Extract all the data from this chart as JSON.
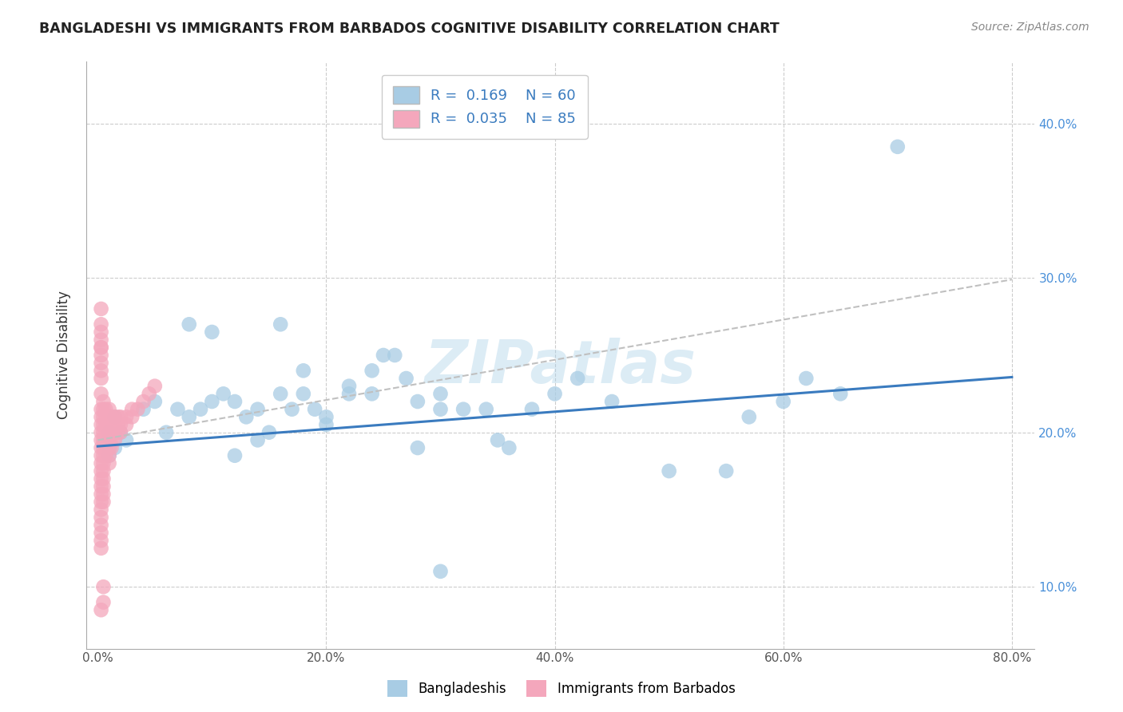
{
  "title": "BANGLADESHI VS IMMIGRANTS FROM BARBADOS COGNITIVE DISABILITY CORRELATION CHART",
  "source": "Source: ZipAtlas.com",
  "ylabel_label": "Cognitive Disability",
  "xlim": [
    -0.01,
    0.82
  ],
  "ylim": [
    0.06,
    0.44
  ],
  "xticks": [
    0.0,
    0.2,
    0.4,
    0.6,
    0.8
  ],
  "xtick_labels": [
    "0.0%",
    "20.0%",
    "40.0%",
    "60.0%",
    "80.0%"
  ],
  "yticks": [
    0.1,
    0.2,
    0.3,
    0.4
  ],
  "ytick_labels": [
    "10.0%",
    "20.0%",
    "30.0%",
    "40.0%"
  ],
  "background_color": "#ffffff",
  "grid_color": "#cccccc",
  "watermark": "ZIPatlas",
  "blue_color": "#a8cce4",
  "pink_color": "#f4a7bc",
  "blue_line_color": "#3a7bbf",
  "dashed_line_color": "#c0c0c0",
  "bangladeshi_x": [
    0.01,
    0.01,
    0.015,
    0.02,
    0.025,
    0.01,
    0.01,
    0.015,
    0.04,
    0.05,
    0.06,
    0.07,
    0.08,
    0.09,
    0.1,
    0.11,
    0.12,
    0.13,
    0.14,
    0.15,
    0.16,
    0.17,
    0.18,
    0.19,
    0.2,
    0.22,
    0.24,
    0.25,
    0.27,
    0.28,
    0.3,
    0.3,
    0.32,
    0.34,
    0.35,
    0.36,
    0.38,
    0.4,
    0.42,
    0.45,
    0.5,
    0.55,
    0.57,
    0.6,
    0.62,
    0.65,
    0.7,
    0.08,
    0.1,
    0.12,
    0.14,
    0.16,
    0.18,
    0.2,
    0.22,
    0.24,
    0.26,
    0.28,
    0.3
  ],
  "bangladeshi_y": [
    0.195,
    0.2,
    0.21,
    0.2,
    0.195,
    0.19,
    0.185,
    0.19,
    0.215,
    0.22,
    0.2,
    0.215,
    0.21,
    0.215,
    0.22,
    0.225,
    0.22,
    0.21,
    0.215,
    0.2,
    0.225,
    0.215,
    0.225,
    0.215,
    0.21,
    0.225,
    0.225,
    0.25,
    0.235,
    0.22,
    0.225,
    0.215,
    0.215,
    0.215,
    0.195,
    0.19,
    0.215,
    0.225,
    0.235,
    0.22,
    0.175,
    0.175,
    0.21,
    0.22,
    0.235,
    0.225,
    0.385,
    0.27,
    0.265,
    0.185,
    0.195,
    0.27,
    0.24,
    0.205,
    0.23,
    0.24,
    0.25,
    0.19,
    0.11
  ],
  "barbados_x": [
    0.003,
    0.003,
    0.003,
    0.003,
    0.003,
    0.003,
    0.003,
    0.003,
    0.003,
    0.003,
    0.003,
    0.003,
    0.003,
    0.003,
    0.003,
    0.005,
    0.005,
    0.005,
    0.005,
    0.005,
    0.005,
    0.005,
    0.005,
    0.005,
    0.005,
    0.005,
    0.005,
    0.005,
    0.005,
    0.007,
    0.007,
    0.007,
    0.007,
    0.007,
    0.007,
    0.007,
    0.01,
    0.01,
    0.01,
    0.01,
    0.01,
    0.01,
    0.01,
    0.01,
    0.012,
    0.012,
    0.012,
    0.012,
    0.012,
    0.015,
    0.015,
    0.015,
    0.015,
    0.018,
    0.018,
    0.018,
    0.02,
    0.02,
    0.02,
    0.025,
    0.025,
    0.03,
    0.03,
    0.035,
    0.04,
    0.045,
    0.05,
    0.005,
    0.005,
    0.003,
    0.003,
    0.003,
    0.003,
    0.003,
    0.003,
    0.003,
    0.003,
    0.003,
    0.003,
    0.003,
    0.003,
    0.003,
    0.003,
    0.003,
    0.003
  ],
  "barbados_y": [
    0.255,
    0.24,
    0.225,
    0.215,
    0.21,
    0.205,
    0.2,
    0.195,
    0.19,
    0.185,
    0.18,
    0.175,
    0.17,
    0.165,
    0.16,
    0.22,
    0.215,
    0.21,
    0.205,
    0.2,
    0.195,
    0.19,
    0.185,
    0.18,
    0.175,
    0.17,
    0.165,
    0.16,
    0.155,
    0.215,
    0.21,
    0.205,
    0.2,
    0.195,
    0.19,
    0.185,
    0.215,
    0.21,
    0.205,
    0.2,
    0.195,
    0.19,
    0.185,
    0.18,
    0.21,
    0.205,
    0.2,
    0.195,
    0.19,
    0.21,
    0.205,
    0.2,
    0.195,
    0.21,
    0.205,
    0.2,
    0.21,
    0.205,
    0.2,
    0.21,
    0.205,
    0.215,
    0.21,
    0.215,
    0.22,
    0.225,
    0.23,
    0.1,
    0.09,
    0.125,
    0.13,
    0.135,
    0.14,
    0.145,
    0.15,
    0.155,
    0.28,
    0.27,
    0.265,
    0.26,
    0.255,
    0.25,
    0.245,
    0.235,
    0.085
  ]
}
